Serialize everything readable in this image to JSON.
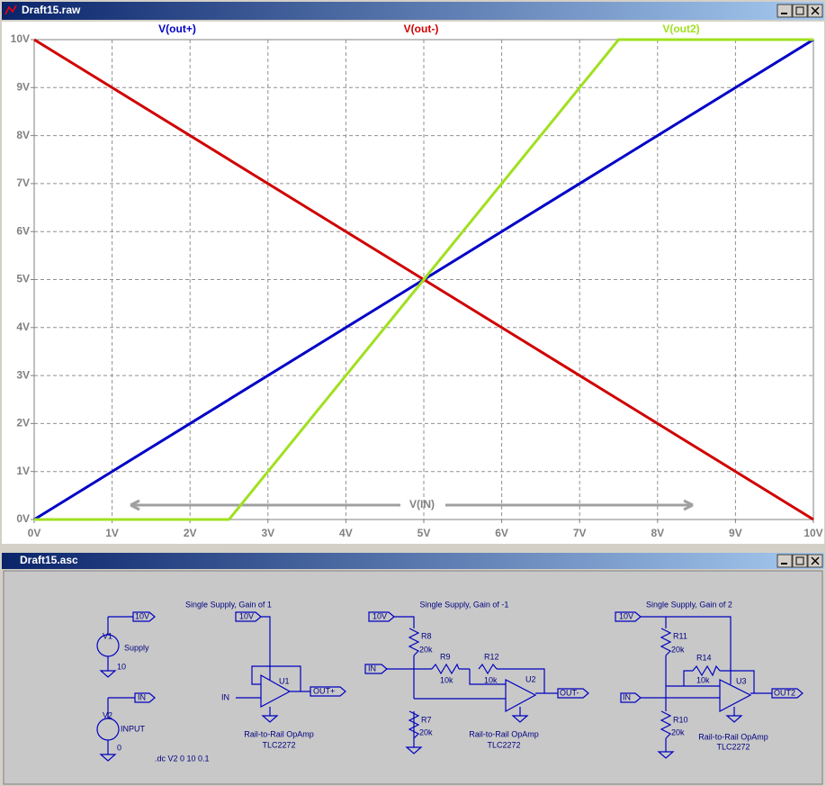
{
  "windows": {
    "plot": {
      "title": "Draft15.raw"
    },
    "schematic": {
      "title": "Draft15.asc",
      "labels": [
        "10V",
        "V1",
        "Supply",
        "10",
        "IN",
        "V2",
        "INPUT",
        "0",
        ".dc V2 0 10 0.1",
        "Single Supply, Gain of 1",
        "10V",
        "U1",
        "IN",
        "OUT+",
        "Rail-to-Rail OpAmp",
        "TLC2272",
        "Single Supply, Gain of -1",
        "10V",
        "R8",
        "20k",
        "IN",
        "R9",
        "10k",
        "R12",
        "10k",
        "U2",
        "OUT-",
        "R7",
        "20k",
        "Rail-to-Rail OpAmp",
        "TLC2272",
        "Single Supply, Gain of 2",
        "10V",
        "R11",
        "20k",
        "R14",
        "10k",
        "U3",
        "IN",
        "OUT2",
        "R10",
        "20k",
        "Rail-to-Rail OpAmp",
        "TLC2272"
      ]
    }
  },
  "chart_data": {
    "type": "line",
    "x": [
      0,
      2.5,
      5,
      7.5,
      10
    ],
    "series": [
      {
        "name": "V(out+)",
        "color": "#0000c8",
        "values": [
          0,
          2.5,
          5,
          7.5,
          10
        ]
      },
      {
        "name": "V(out-)",
        "color": "#d00000",
        "values": [
          10,
          7.5,
          5,
          2.5,
          0
        ]
      },
      {
        "name": "V(out2)",
        "color": "#a0e020",
        "values": [
          0,
          0,
          5,
          10,
          10
        ]
      }
    ],
    "xlim": [
      0,
      10
    ],
    "ylim": [
      0,
      10
    ],
    "xticks": [
      {
        "value": 0,
        "label": "0V"
      },
      {
        "value": 1,
        "label": "1V"
      },
      {
        "value": 2,
        "label": "2V"
      },
      {
        "value": 3,
        "label": "3V"
      },
      {
        "value": 4,
        "label": "4V"
      },
      {
        "value": 5,
        "label": "5V"
      },
      {
        "value": 6,
        "label": "6V"
      },
      {
        "value": 7,
        "label": "7V"
      },
      {
        "value": 8,
        "label": "8V"
      },
      {
        "value": 9,
        "label": "9V"
      },
      {
        "value": 10,
        "label": "10V"
      }
    ],
    "yticks": [
      {
        "value": 0,
        "label": "0V"
      },
      {
        "value": 1,
        "label": "1V"
      },
      {
        "value": 2,
        "label": "2V"
      },
      {
        "value": 3,
        "label": "3V"
      },
      {
        "value": 4,
        "label": "4V"
      },
      {
        "value": 5,
        "label": "5V"
      },
      {
        "value": 6,
        "label": "6V"
      },
      {
        "value": 7,
        "label": "7V"
      },
      {
        "value": 8,
        "label": "8V"
      },
      {
        "value": 9,
        "label": "9V"
      },
      {
        "value": 10,
        "label": "10V"
      }
    ],
    "grid": true,
    "annotation": "V(IN)"
  }
}
